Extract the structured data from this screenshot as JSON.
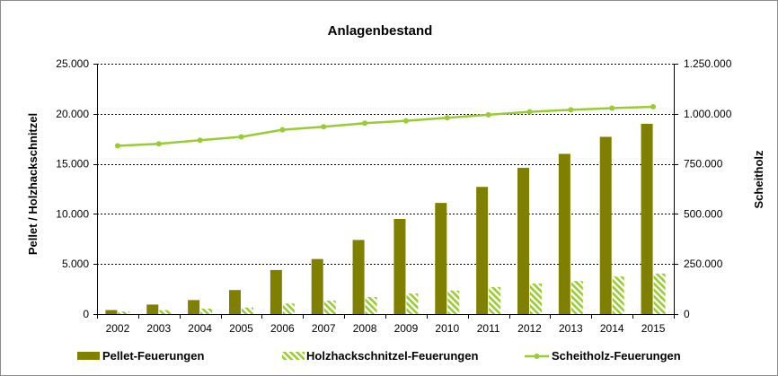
{
  "chart_data": {
    "type": "bar",
    "title": "Anlagenbestand",
    "categories": [
      "2002",
      "2003",
      "2004",
      "2005",
      "2006",
      "2007",
      "2008",
      "2009",
      "2010",
      "2011",
      "2012",
      "2013",
      "2014",
      "2015"
    ],
    "y_left": {
      "label": "Pellet / Holzhackschnitzel",
      "range": [
        0,
        25000
      ],
      "ticks": [
        0,
        5000,
        10000,
        15000,
        20000,
        25000
      ],
      "tick_labels": [
        "0",
        "5.000",
        "10.000",
        "15.000",
        "20.000",
        "25.000"
      ]
    },
    "y_right": {
      "label": "Scheitholz",
      "range": [
        0,
        1250000
      ],
      "ticks": [
        0,
        250000,
        500000,
        750000,
        1000000,
        1250000
      ],
      "tick_labels": [
        "0",
        "250.000",
        "500.000",
        "750.000",
        "1.000.000",
        "1.250.000"
      ]
    },
    "grid": "horizontal-dashed",
    "legend_position": "bottom",
    "series": [
      {
        "name": "Pellet-Feuerungen",
        "type": "bar",
        "axis": "left",
        "color": "#808000",
        "values": [
          400,
          950,
          1400,
          2400,
          4400,
          5500,
          7400,
          9500,
          11100,
          12700,
          14600,
          16000,
          17700,
          19000
        ]
      },
      {
        "name": "Holzhackschnitzel-Feuerungen",
        "type": "bar",
        "axis": "left",
        "pattern": "diagonal-stripes",
        "color": "#99cc33",
        "values": [
          250,
          400,
          550,
          650,
          1050,
          1350,
          1700,
          2050,
          2350,
          2700,
          3050,
          3300,
          3750,
          4050
        ]
      },
      {
        "name": "Scheitholz-Feuerungen",
        "type": "line",
        "axis": "right",
        "color": "#99cc33",
        "values": [
          840000,
          850000,
          868000,
          885000,
          920000,
          935000,
          953000,
          965000,
          980000,
          995000,
          1010000,
          1020000,
          1028000,
          1035000
        ]
      }
    ]
  }
}
